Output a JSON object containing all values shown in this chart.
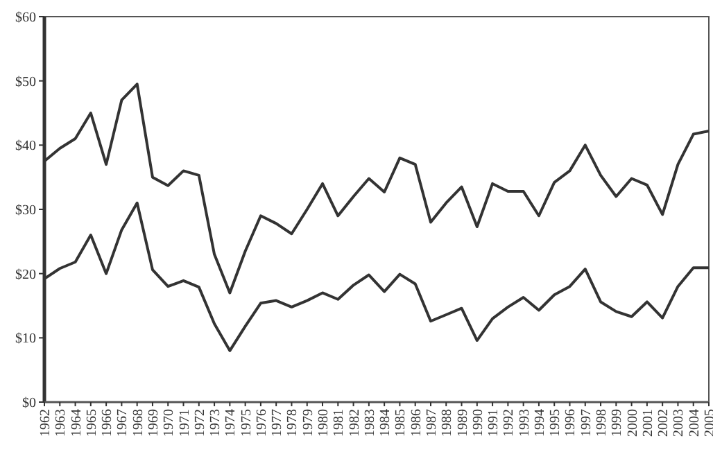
{
  "chart_data": {
    "type": "line",
    "categories": [
      "1962",
      "1963",
      "1964",
      "1965",
      "1966",
      "1967",
      "1968",
      "1969",
      "1970",
      "1971",
      "1972",
      "1973",
      "1974",
      "1975",
      "1976",
      "1977",
      "1978",
      "1979",
      "1980",
      "1981",
      "1982",
      "1983",
      "1984",
      "1985",
      "1986",
      "1987",
      "1988",
      "1989",
      "1990",
      "1991",
      "1992",
      "1993",
      "1994",
      "1995",
      "1996",
      "1997",
      "1998",
      "1999",
      "2000",
      "2001",
      "2002",
      "2003",
      "2004",
      "2005"
    ],
    "series": [
      {
        "color": "#333333",
        "values": [
          37.5,
          39.5,
          41,
          45,
          37,
          47,
          49.5,
          35,
          33.7,
          36,
          35.3,
          23,
          17,
          23.5,
          29,
          27.8,
          26.2,
          30,
          34,
          29,
          32,
          34.8,
          32.7,
          38,
          37,
          28,
          31,
          33.5,
          27.3,
          34,
          32.8,
          32.8,
          29,
          34.2,
          36,
          40,
          35.3,
          32,
          34.8,
          33.8,
          29.2,
          37,
          41.7,
          42.2
        ]
      },
      {
        "color": "#333333",
        "values": [
          19.2,
          20.8,
          21.8,
          26,
          20,
          26.8,
          31,
          20.6,
          18,
          18.9,
          17.9,
          12.2,
          8,
          11.8,
          15.4,
          15.8,
          14.8,
          15.8,
          17,
          16,
          18.2,
          19.8,
          17.2,
          19.9,
          18.4,
          12.6,
          13.6,
          14.6,
          9.6,
          13,
          14.8,
          16.3,
          14.3,
          16.7,
          18,
          20.7,
          15.6,
          14.1,
          13.3,
          15.6,
          13.1,
          18,
          20.9,
          20.9
        ]
      }
    ],
    "ylim": [
      0,
      60
    ],
    "yticks": [
      {
        "value": 0,
        "label": "$0"
      },
      {
        "value": 10,
        "label": "$10"
      },
      {
        "value": 20,
        "label": "$20"
      },
      {
        "value": 30,
        "label": "$30"
      },
      {
        "value": 40,
        "label": "$40"
      },
      {
        "value": 50,
        "label": "$50"
      },
      {
        "value": 60,
        "label": "$60"
      }
    ],
    "grid": false,
    "marker": "none",
    "line_style": "solid"
  }
}
